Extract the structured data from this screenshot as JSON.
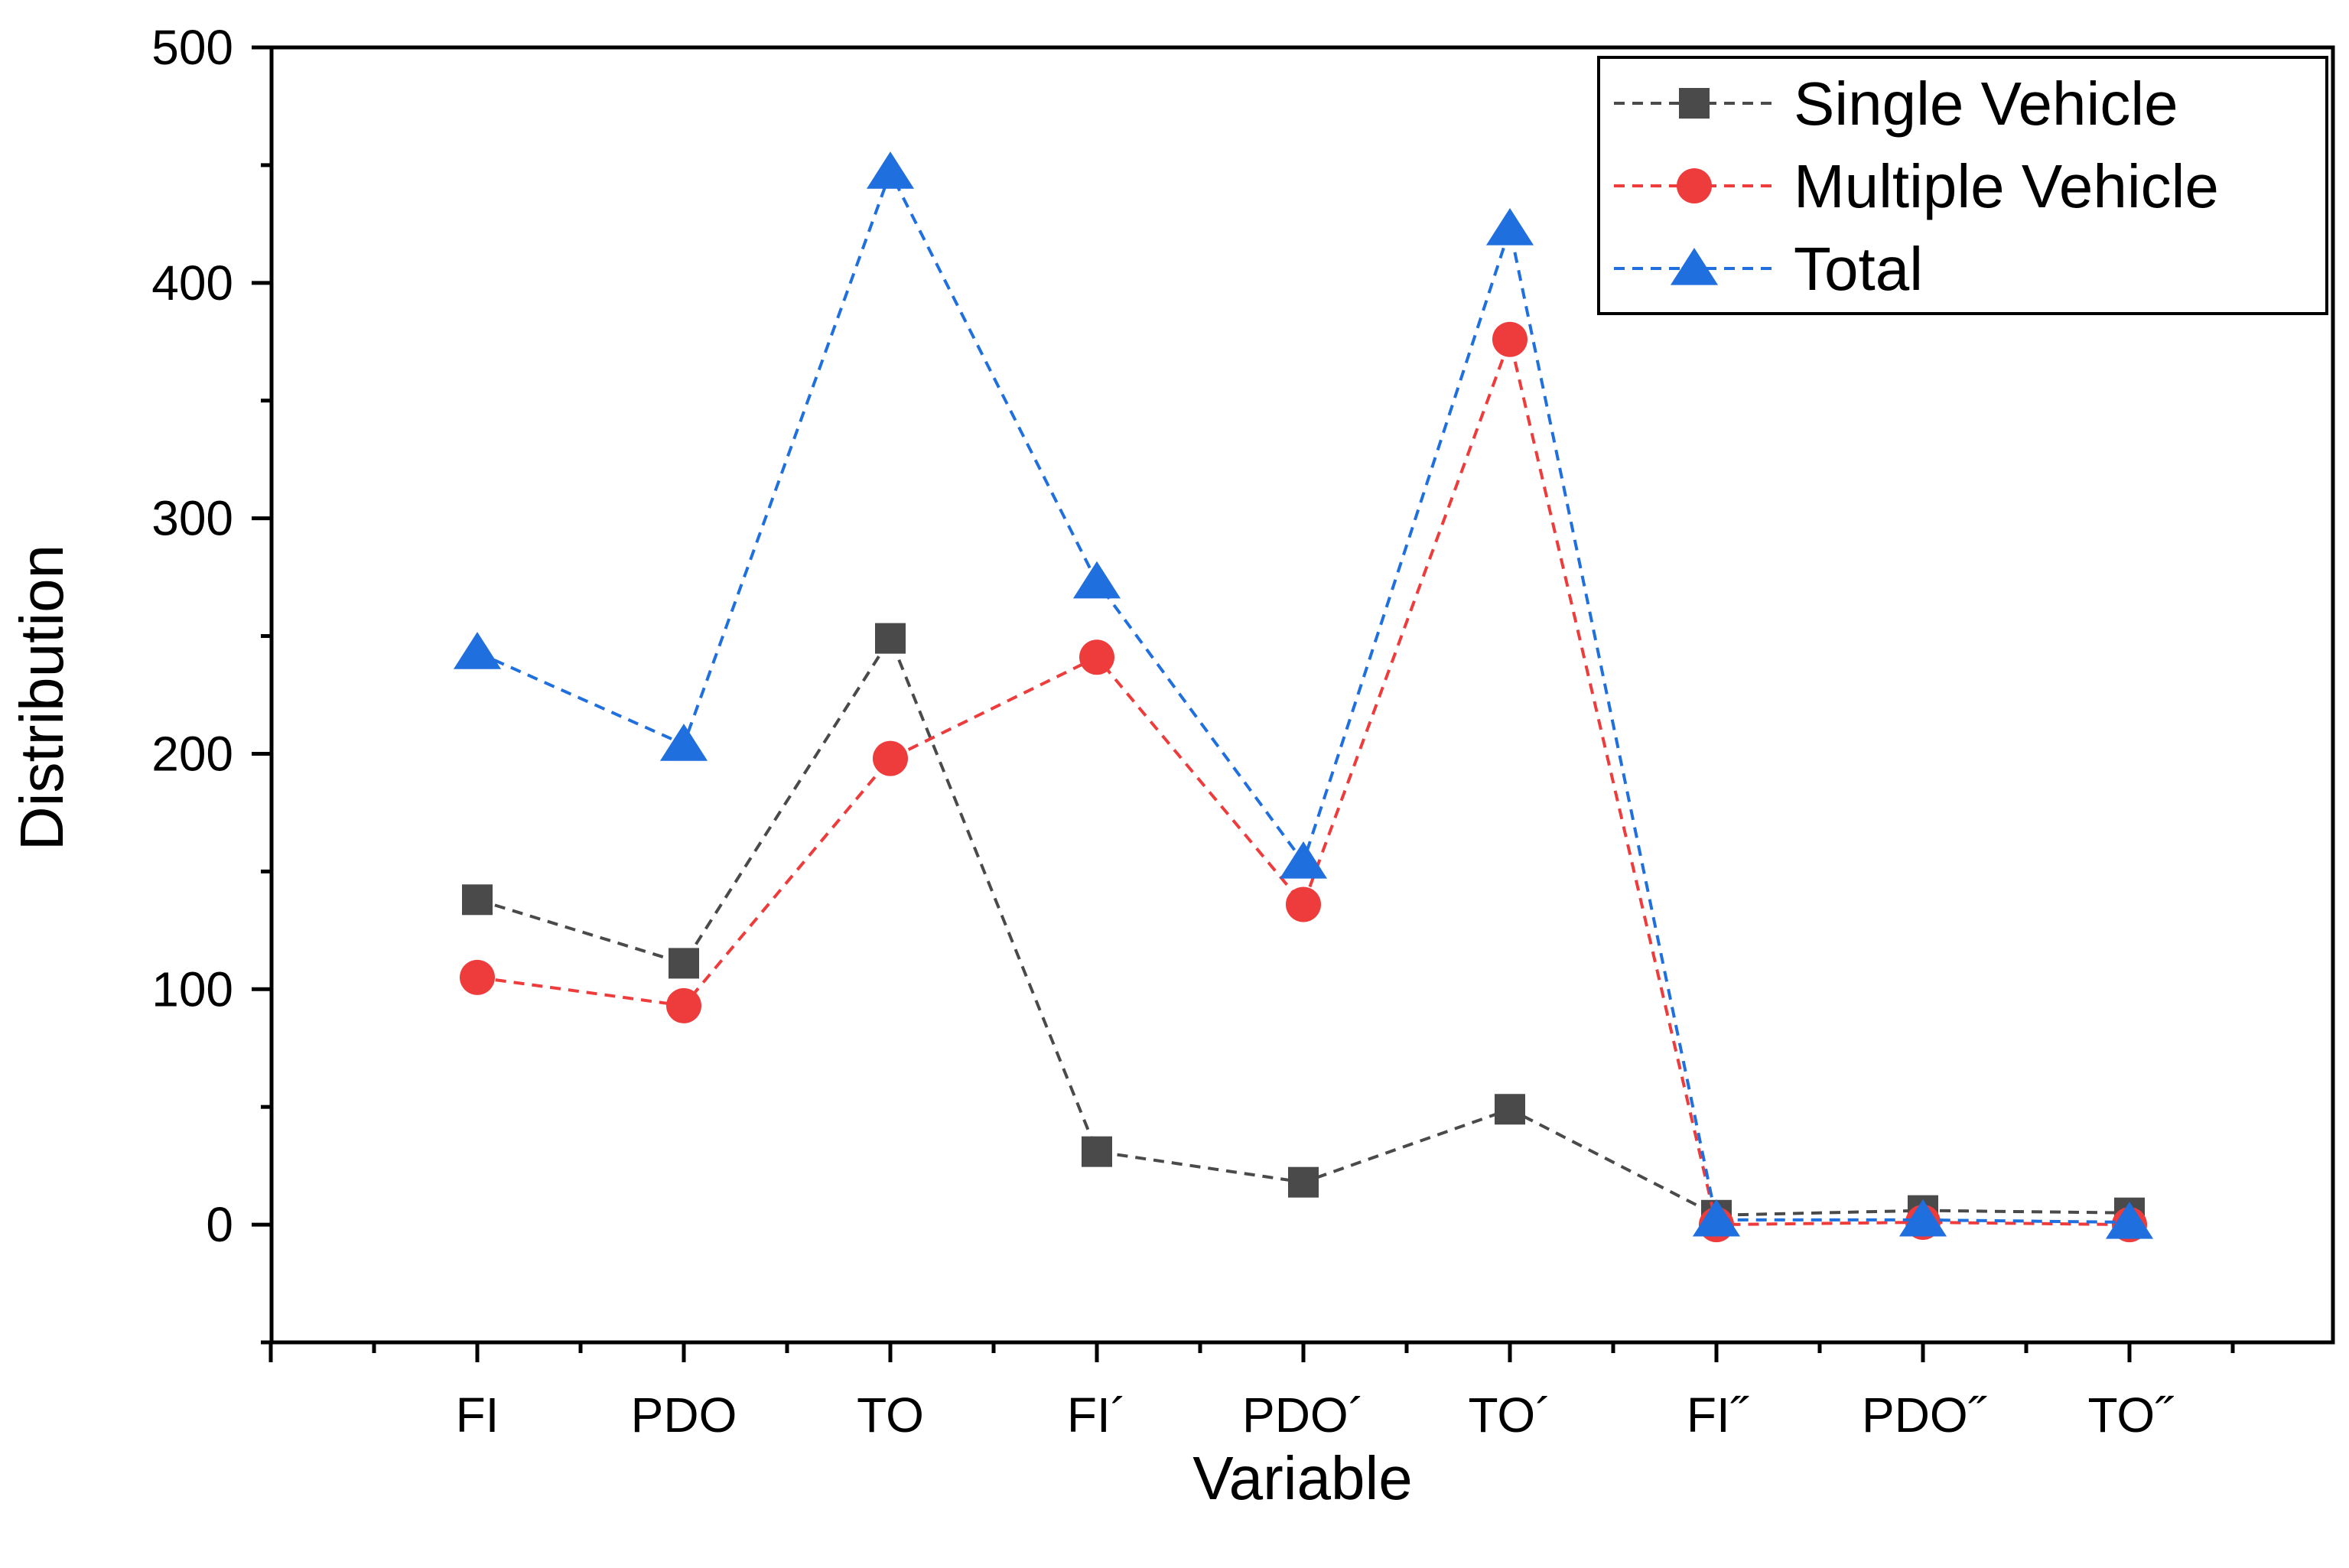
{
  "chart_data": {
    "type": "line",
    "title": "",
    "xlabel": "Variable",
    "ylabel": "Distribution",
    "ylim": [
      -50,
      500
    ],
    "yticks": [
      0,
      100,
      200,
      300,
      400,
      500
    ],
    "yticks_minor": [
      -50,
      50,
      150,
      250,
      350,
      450
    ],
    "categories": [
      "FI",
      "PDO",
      "TO",
      "FI´",
      "PDO´",
      "TO´",
      "FI˝",
      "PDO˝",
      "TO˝"
    ],
    "legend_position": "top-right",
    "grid": false,
    "series": [
      {
        "name": "Single Vehicle",
        "marker": "square",
        "color": "#4a4a4a",
        "line_style": "dashed",
        "values": [
          138,
          111,
          249,
          31,
          18,
          49,
          4,
          6,
          5
        ]
      },
      {
        "name": "Multiple Vehicle",
        "marker": "circle",
        "color": "#ee3b3b",
        "line_style": "dashed",
        "values": [
          105,
          93,
          198,
          241,
          136,
          376,
          0,
          1,
          0
        ]
      },
      {
        "name": "Total",
        "marker": "triangle",
        "color": "#1f6fdf",
        "line_style": "dashed",
        "values": [
          243,
          204,
          447,
          273,
          154,
          423,
          2,
          2,
          1
        ]
      }
    ]
  }
}
